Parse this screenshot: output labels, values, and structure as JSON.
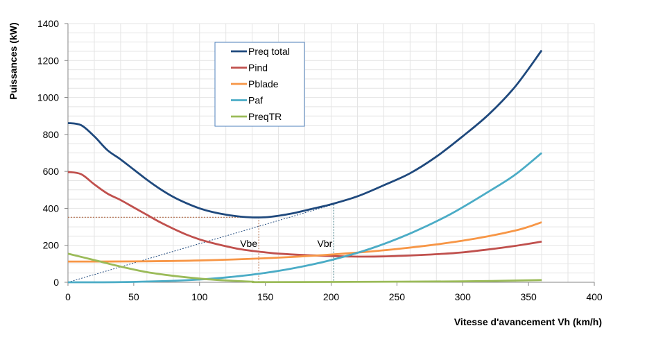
{
  "chart_data": {
    "type": "line",
    "title": "",
    "xlabel": "Vitesse d'avancement Vh (km/h)",
    "ylabel": "Puissances (kW)",
    "xlim": [
      0,
      400
    ],
    "ylim": [
      0,
      1400
    ],
    "xticks": [
      0,
      50,
      100,
      150,
      200,
      250,
      300,
      350,
      400
    ],
    "yticks": [
      0,
      200,
      400,
      600,
      800,
      1000,
      1200,
      1400
    ],
    "grid": true,
    "legend": "top-center",
    "series": [
      {
        "name": "Preq total",
        "color": "#1F497D",
        "points": [
          [
            0,
            862
          ],
          [
            10,
            850
          ],
          [
            20,
            790
          ],
          [
            30,
            715
          ],
          [
            40,
            665
          ],
          [
            50,
            610
          ],
          [
            60,
            555
          ],
          [
            70,
            505
          ],
          [
            80,
            462
          ],
          [
            90,
            428
          ],
          [
            100,
            400
          ],
          [
            110,
            380
          ],
          [
            120,
            366
          ],
          [
            130,
            356
          ],
          [
            140,
            351
          ],
          [
            150,
            352
          ],
          [
            160,
            360
          ],
          [
            170,
            372
          ],
          [
            180,
            388
          ],
          [
            190,
            405
          ],
          [
            200,
            422
          ],
          [
            220,
            465
          ],
          [
            240,
            525
          ],
          [
            260,
            590
          ],
          [
            280,
            680
          ],
          [
            300,
            790
          ],
          [
            320,
            910
          ],
          [
            340,
            1060
          ],
          [
            360,
            1255
          ]
        ]
      },
      {
        "name": "Pind",
        "color": "#C0504D",
        "points": [
          [
            0,
            597
          ],
          [
            10,
            585
          ],
          [
            20,
            530
          ],
          [
            30,
            480
          ],
          [
            40,
            445
          ],
          [
            50,
            405
          ],
          [
            60,
            365
          ],
          [
            70,
            325
          ],
          [
            80,
            290
          ],
          [
            90,
            258
          ],
          [
            100,
            232
          ],
          [
            110,
            212
          ],
          [
            120,
            195
          ],
          [
            130,
            180
          ],
          [
            140,
            170
          ],
          [
            150,
            162
          ],
          [
            160,
            155
          ],
          [
            180,
            147
          ],
          [
            200,
            142
          ],
          [
            220,
            139
          ],
          [
            240,
            140
          ],
          [
            260,
            145
          ],
          [
            280,
            152
          ],
          [
            300,
            162
          ],
          [
            320,
            178
          ],
          [
            340,
            197
          ],
          [
            360,
            220
          ]
        ]
      },
      {
        "name": "Pblade",
        "color": "#F79646",
        "points": [
          [
            0,
            112
          ],
          [
            50,
            113
          ],
          [
            100,
            118
          ],
          [
            150,
            130
          ],
          [
            200,
            150
          ],
          [
            250,
            180
          ],
          [
            300,
            225
          ],
          [
            340,
            280
          ],
          [
            360,
            325
          ]
        ]
      },
      {
        "name": "Paf",
        "color": "#4BACC6",
        "points": [
          [
            0,
            0
          ],
          [
            40,
            1
          ],
          [
            80,
            8
          ],
          [
            100,
            15
          ],
          [
            120,
            26
          ],
          [
            145,
            46
          ],
          [
            170,
            74
          ],
          [
            200,
            120
          ],
          [
            230,
            182
          ],
          [
            260,
            264
          ],
          [
            290,
            366
          ],
          [
            320,
            492
          ],
          [
            340,
            583
          ],
          [
            360,
            700
          ]
        ]
      },
      {
        "name": "PreqTR",
        "color": "#9BBB59",
        "points": [
          [
            0,
            155
          ],
          [
            20,
            120
          ],
          [
            40,
            85
          ],
          [
            60,
            55
          ],
          [
            80,
            35
          ],
          [
            100,
            20
          ],
          [
            120,
            10
          ],
          [
            140,
            3
          ],
          [
            145,
            1
          ],
          [
            200,
            2
          ],
          [
            300,
            5
          ],
          [
            360,
            12
          ]
        ]
      }
    ],
    "annotations": [
      {
        "label": "Vbe",
        "x": 145,
        "y": 352
      },
      {
        "label": "Vbr",
        "x": 202,
        "y": 422
      }
    ]
  }
}
